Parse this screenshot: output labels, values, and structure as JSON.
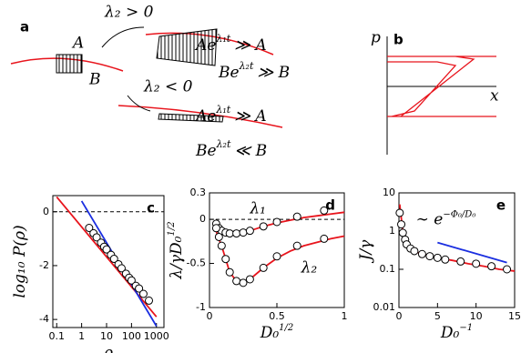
{
  "panel_a": {
    "label": "a",
    "cond_pos": "λ₂ > 0",
    "cond_neg": "λ₂ < 0",
    "A": "A",
    "B": "B",
    "growth": [
      {
        "base": "Ae",
        "exp": "λ₁t",
        "rel": "≫ A"
      },
      {
        "base": "Be",
        "exp": "λ₂t",
        "rel": "≫ B"
      },
      {
        "base": "Ae",
        "exp": "λ₁t",
        "rel": "≫ A"
      },
      {
        "base": "Be",
        "exp": "λ₂t",
        "rel": "≪ B"
      }
    ]
  },
  "panel_b": {
    "label": "b",
    "y_axis": "p",
    "x_axis": "x"
  },
  "chart_data": [
    {
      "type": "line",
      "panel_label": "c",
      "xlabel": {
        "text": "ρ"
      },
      "ylabel": {
        "text": "log₁₀ P(ρ)"
      },
      "xlog": true,
      "xlim": [
        0.07,
        2000
      ],
      "ylim": [
        -4.3,
        0.6
      ],
      "xticks": [
        0.1,
        1,
        10,
        100,
        1000
      ],
      "yticks": [
        0,
        -2,
        -4
      ],
      "series": [
        {
          "style": "line",
          "color": "#e8141c",
          "x": [
            0.1,
            1000
          ],
          "values": [
            0.55,
            -3.9
          ]
        },
        {
          "style": "line",
          "color": "#1a2ee0",
          "x": [
            1,
            1000
          ],
          "values": [
            0.4,
            -4.25
          ]
        },
        {
          "style": "marker",
          "color": "#000000",
          "x": [
            2,
            3,
            4,
            6,
            8,
            10,
            15,
            20,
            30,
            40,
            60,
            80,
            100,
            150,
            200,
            300,
            500
          ],
          "values": [
            -0.6,
            -0.8,
            -0.95,
            -1.15,
            -1.3,
            -1.4,
            -1.6,
            -1.75,
            -1.95,
            -2.1,
            -2.3,
            -2.45,
            -2.55,
            -2.75,
            -2.85,
            -3.05,
            -3.3
          ]
        }
      ]
    },
    {
      "type": "line",
      "panel_label": "d",
      "xlabel": {
        "text": "D₀",
        "sup": "1/2"
      },
      "ylabel": {
        "text": "λ/γD₀",
        "sup": "1/2"
      },
      "xlim": [
        0,
        1
      ],
      "ylim": [
        -1,
        0.3
      ],
      "xticks": [
        0,
        0.5,
        1
      ],
      "yticks": [
        0.3,
        0,
        -0.5,
        -1
      ],
      "annotations": [
        {
          "text": "λ₁",
          "x": 0.3,
          "y": 0.12
        },
        {
          "text": "λ₂",
          "x": 0.68,
          "y": -0.55
        }
      ],
      "series": [
        {
          "style": "line",
          "color": "#e8141c",
          "x": [
            0.03,
            0.1,
            0.2,
            0.3,
            0.4,
            0.5,
            0.6,
            0.7,
            0.8,
            0.9,
            1
          ],
          "values": [
            -0.02,
            -0.12,
            -0.16,
            -0.13,
            -0.08,
            -0.04,
            -0.01,
            0.02,
            0.04,
            0.06,
            0.08
          ]
        },
        {
          "style": "line",
          "color": "#e8141c",
          "x": [
            0.03,
            0.1,
            0.15,
            0.2,
            0.25,
            0.3,
            0.4,
            0.5,
            0.6,
            0.7,
            0.8,
            0.9,
            1
          ],
          "values": [
            -0.05,
            -0.35,
            -0.6,
            -0.7,
            -0.72,
            -0.68,
            -0.55,
            -0.44,
            -0.36,
            -0.3,
            -0.26,
            -0.22,
            -0.19
          ]
        },
        {
          "style": "marker",
          "color": "#000000",
          "x": [
            0.05,
            0.07,
            0.09,
            0.12,
            0.15,
            0.2,
            0.25,
            0.3,
            0.4,
            0.5,
            0.65,
            0.85
          ],
          "values": [
            -0.05,
            -0.1,
            -0.13,
            -0.15,
            -0.16,
            -0.16,
            -0.15,
            -0.13,
            -0.08,
            -0.03,
            0.03,
            0.1
          ]
        },
        {
          "style": "marker",
          "color": "#000000",
          "x": [
            0.05,
            0.07,
            0.09,
            0.12,
            0.15,
            0.2,
            0.25,
            0.3,
            0.4,
            0.5,
            0.65,
            0.85
          ],
          "values": [
            -0.1,
            -0.2,
            -0.3,
            -0.45,
            -0.6,
            -0.7,
            -0.72,
            -0.68,
            -0.55,
            -0.42,
            -0.3,
            -0.22
          ]
        }
      ]
    },
    {
      "type": "line",
      "panel_label": "e",
      "xlabel": {
        "text": "D₀",
        "sup": "−1"
      },
      "ylabel": {
        "text": "J/γ"
      },
      "ylog": true,
      "xlim": [
        0,
        15
      ],
      "ylim": [
        0.01,
        10
      ],
      "xticks": [
        0,
        5,
        10,
        15
      ],
      "yticks": [
        0.01,
        0.1,
        1,
        10
      ],
      "annotations": [
        {
          "text": "∼ e",
          "sup": "−Φ₀/D₀",
          "x": 2.2,
          "y": 2
        }
      ],
      "series": [
        {
          "style": "line",
          "color": "#e8141c",
          "x": [
            0.1,
            0.5,
            1,
            2,
            3,
            5,
            7,
            9,
            11,
            13,
            15
          ],
          "values": [
            5,
            1,
            0.5,
            0.3,
            0.25,
            0.2,
            0.17,
            0.14,
            0.12,
            0.1,
            0.09
          ]
        },
        {
          "style": "line",
          "color": "#1a2ee0",
          "x": [
            5,
            14
          ],
          "values": [
            0.5,
            0.15
          ]
        },
        {
          "style": "marker",
          "color": "#000000",
          "x": [
            0.1,
            0.3,
            0.5,
            0.8,
            1,
            1.5,
            2,
            3,
            4,
            5,
            6,
            8,
            10,
            12,
            14
          ],
          "values": [
            3,
            1.5,
            0.9,
            0.6,
            0.45,
            0.35,
            0.3,
            0.25,
            0.22,
            0.2,
            0.18,
            0.16,
            0.14,
            0.12,
            0.1
          ]
        }
      ]
    }
  ]
}
